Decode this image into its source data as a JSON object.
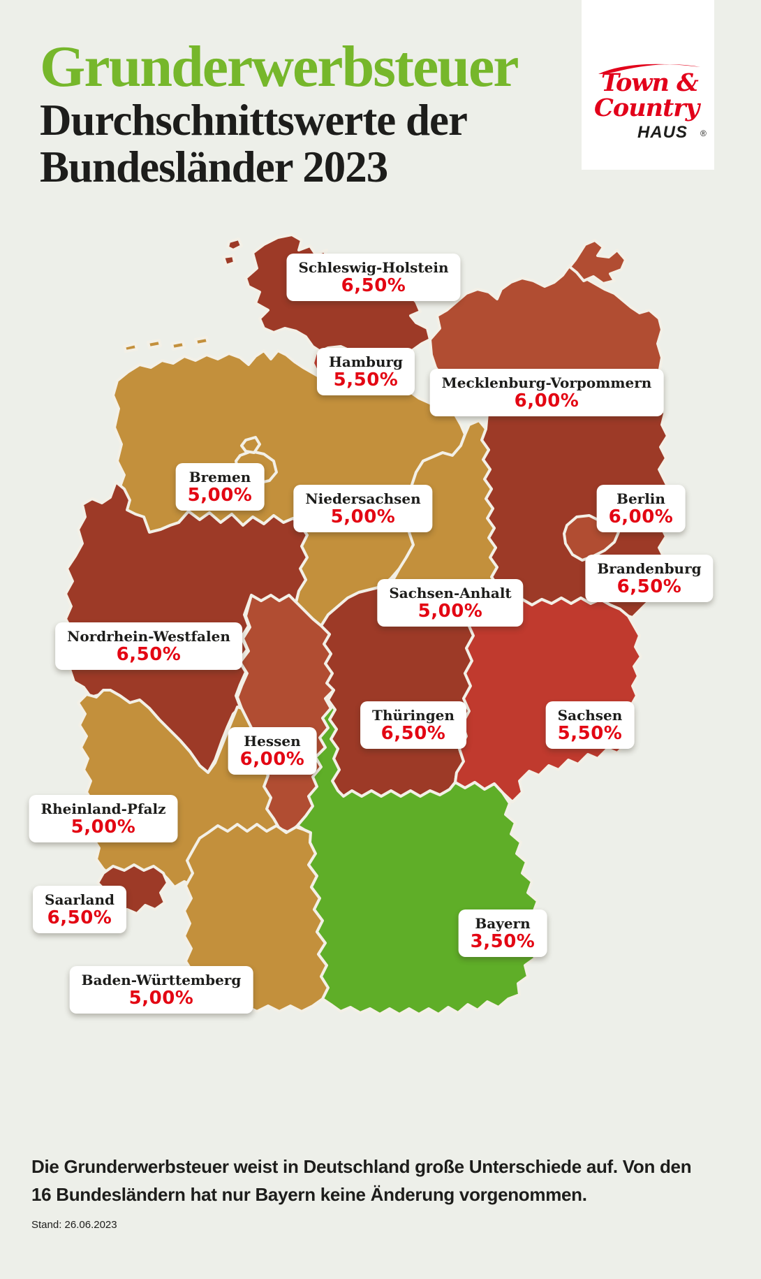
{
  "header": {
    "title_line1": "Grunderwerbsteuer",
    "title_line2": "Durchschnittswerte der",
    "title_line3": "Bundesländer 2023"
  },
  "logo": {
    "line1": "Town &",
    "line2": "Country",
    "line3": "HAUS",
    "registered": "®"
  },
  "colors": {
    "background": "#edefe9",
    "title_green": "#76b72b",
    "text_black": "#1d1d1b",
    "value_red": "#e30613",
    "logo_red": "#e2001a",
    "state_border": "#f3f0e7",
    "rate_6_50": "#9d3a27",
    "rate_6_00": "#b14d32",
    "rate_5_50": "#c03a2e",
    "rate_5_00": "#c3903c",
    "rate_3_50": "#5fae28"
  },
  "map": {
    "states": [
      {
        "id": "sh",
        "name": "Schleswig-Holstein",
        "value": "6,50%",
        "rate": "rate_6_50"
      },
      {
        "id": "hh",
        "name": "Hamburg",
        "value": "5,50%",
        "rate": "rate_5_50"
      },
      {
        "id": "mv",
        "name": "Mecklenburg-Vorpommern",
        "value": "6,00%",
        "rate": "rate_6_00"
      },
      {
        "id": "hb",
        "name": "Bremen",
        "value": "5,00%",
        "rate": "rate_5_00"
      },
      {
        "id": "ni",
        "name": "Niedersachsen",
        "value": "5,00%",
        "rate": "rate_5_00"
      },
      {
        "id": "be",
        "name": "Berlin",
        "value": "6,00%",
        "rate": "rate_6_00"
      },
      {
        "id": "bb",
        "name": "Brandenburg",
        "value": "6,50%",
        "rate": "rate_6_50"
      },
      {
        "id": "st",
        "name": "Sachsen-Anhalt",
        "value": "5,00%",
        "rate": "rate_5_00"
      },
      {
        "id": "nw",
        "name": "Nordrhein-Westfalen",
        "value": "6,50%",
        "rate": "rate_6_50"
      },
      {
        "id": "th",
        "name": "Thüringen",
        "value": "6,50%",
        "rate": "rate_6_50"
      },
      {
        "id": "sn",
        "name": "Sachsen",
        "value": "5,50%",
        "rate": "rate_5_50"
      },
      {
        "id": "he",
        "name": "Hessen",
        "value": "6,00%",
        "rate": "rate_6_00"
      },
      {
        "id": "rp",
        "name": "Rheinland-Pfalz",
        "value": "5,00%",
        "rate": "rate_5_00"
      },
      {
        "id": "sl",
        "name": "Saarland",
        "value": "6,50%",
        "rate": "rate_6_50"
      },
      {
        "id": "bw",
        "name": "Baden-Württemberg",
        "value": "5,00%",
        "rate": "rate_5_00"
      },
      {
        "id": "by",
        "name": "Bayern",
        "value": "3,50%",
        "rate": "rate_3_50"
      }
    ]
  },
  "footer": {
    "line1": "Die Grunderwerbsteuer weist in Deutschland große Unterschiede auf. Von den",
    "line2": "16 Bundesländern hat nur Bayern keine Änderung vorgenommen.",
    "stand": "Stand: 26.06.2023"
  },
  "chart_data": {
    "type": "choropleth",
    "title": "Grunderwerbsteuer — Durchschnittswerte der Bundesländer 2023",
    "unit": "%",
    "regions": [
      "Schleswig-Holstein",
      "Hamburg",
      "Mecklenburg-Vorpommern",
      "Bremen",
      "Niedersachsen",
      "Berlin",
      "Brandenburg",
      "Sachsen-Anhalt",
      "Nordrhein-Westfalen",
      "Thüringen",
      "Sachsen",
      "Hessen",
      "Rheinland-Pfalz",
      "Saarland",
      "Baden-Württemberg",
      "Bayern"
    ],
    "values": [
      6.5,
      5.5,
      6.0,
      5.0,
      5.0,
      6.0,
      6.5,
      5.0,
      6.5,
      6.5,
      5.5,
      6.0,
      5.0,
      6.5,
      5.0,
      3.5
    ]
  }
}
